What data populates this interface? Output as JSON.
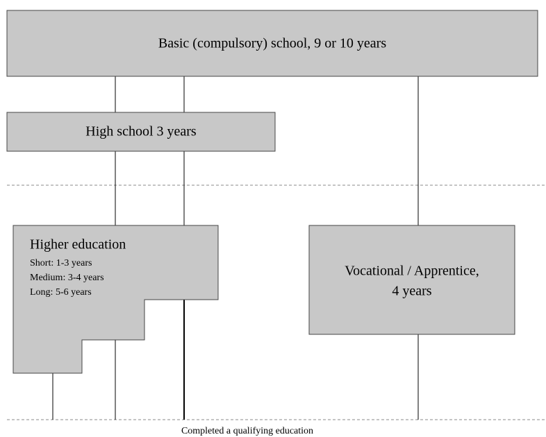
{
  "nodes": [
    {
      "label": "Basic (compulsory) school, 9 or 10 years"
    },
    {
      "label": "High school 3 years"
    },
    {
      "title": "Higher education",
      "details": [
        "Short: 1-3 years",
        "Medium: 3-4 years",
        "Long: 5-6 years"
      ]
    },
    {
      "lines": [
        "Vocational / Apprentice,",
        "4 years"
      ]
    }
  ],
  "footer": "Completed a qualifying education"
}
